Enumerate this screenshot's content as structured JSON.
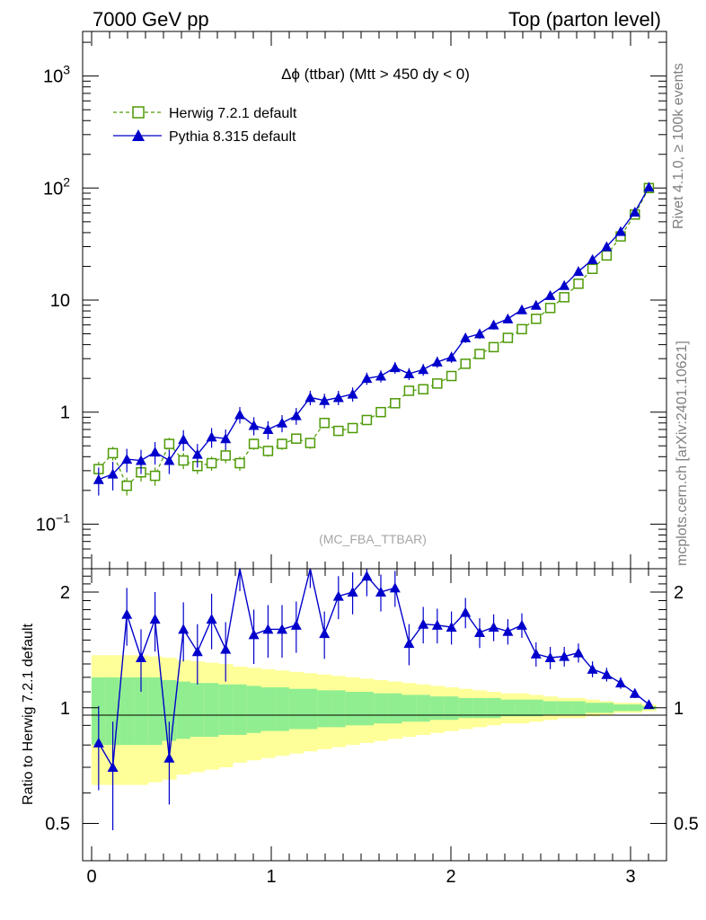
{
  "header": {
    "left": "7000 GeV pp",
    "right": "Top (parton level)"
  },
  "side_labels": {
    "rivet": "Rivet 4.1.0, ≥ 100k events",
    "mcplots": "mcplots.cern.ch [arXiv:2401.10621]"
  },
  "plot": {
    "title": "Δϕ (ttbar) (Mtt > 450 dy < 0)",
    "analysis": "(MC_FBA_TTBAR)",
    "ratio_ylabel": "Ratio to Herwig 7.2.1 default",
    "main_yticks": [
      {
        "base": "10",
        "exp": "3",
        "value": 1000
      },
      {
        "base": "10",
        "exp": "2",
        "value": 100
      },
      {
        "base": "10",
        "exp": "",
        "value": 10
      },
      {
        "base": "1",
        "exp": "",
        "value": 1
      },
      {
        "base": "10",
        "exp": "−1",
        "value": 0.1
      }
    ],
    "ratio_yticks": [
      {
        "label": "2",
        "value": 2
      },
      {
        "label": "1",
        "value": 1
      },
      {
        "label": "0.5",
        "value": 0.5
      }
    ],
    "xticks": [
      {
        "label": "0",
        "value": 0
      },
      {
        "label": "1",
        "value": 1
      },
      {
        "label": "2",
        "value": 2
      },
      {
        "label": "3",
        "value": 3
      }
    ]
  },
  "chart_data": {
    "type": "line",
    "title": "Δϕ (ttbar) (Mtt > 450 dy < 0)",
    "xlabel": "",
    "ylabel": "",
    "xlim": [
      -0.05,
      3.2
    ],
    "ylim": [
      0.04,
      2500
    ],
    "yscale": "log",
    "ratio_ylim": [
      0.4,
      2.3
    ],
    "legend_position": "top-left",
    "x": [
      0.039,
      0.118,
      0.196,
      0.275,
      0.353,
      0.432,
      0.511,
      0.589,
      0.668,
      0.746,
      0.825,
      0.903,
      0.982,
      1.06,
      1.139,
      1.217,
      1.296,
      1.374,
      1.453,
      1.532,
      1.61,
      1.689,
      1.767,
      1.846,
      1.924,
      2.003,
      2.081,
      2.16,
      2.238,
      2.317,
      2.395,
      2.474,
      2.553,
      2.631,
      2.71,
      2.788,
      2.867,
      2.945,
      3.024,
      3.102
    ],
    "series": [
      {
        "name": "Herwig 7.2.1 default",
        "color": "#4e9a06",
        "marker": "open-square",
        "values": [
          0.31,
          0.43,
          0.22,
          0.29,
          0.27,
          0.52,
          0.37,
          0.33,
          0.35,
          0.41,
          0.35,
          0.52,
          0.45,
          0.52,
          0.58,
          0.53,
          0.8,
          0.68,
          0.72,
          0.85,
          1.0,
          1.2,
          1.55,
          1.6,
          1.8,
          2.1,
          2.7,
          3.3,
          3.8,
          4.6,
          5.5,
          6.8,
          8.5,
          10.6,
          14,
          19,
          25,
          37,
          58,
          100
        ],
        "errors": [
          0.05,
          0.06,
          0.04,
          0.05,
          0.05,
          0.07,
          0.06,
          0.05,
          0.05,
          0.06,
          0.05,
          0.06,
          0.05,
          0.06,
          0.06,
          0.06,
          0.08,
          0.07,
          0.07,
          0.08,
          0.08,
          0.09,
          0.1,
          0.1,
          0.11,
          0.12,
          0.14,
          0.15,
          0.17,
          0.2,
          0.22,
          0.26,
          0.3,
          0.35,
          0.45,
          0.55,
          0.7,
          0.9,
          1.2,
          1.8
        ]
      },
      {
        "name": "Pythia 8.315 default",
        "color": "#0000cc",
        "marker": "filled-triangle",
        "values": [
          0.25,
          0.28,
          0.38,
          0.37,
          0.44,
          0.37,
          0.57,
          0.42,
          0.6,
          0.58,
          0.95,
          0.76,
          0.7,
          0.8,
          0.93,
          1.35,
          1.27,
          1.35,
          1.45,
          2.0,
          2.1,
          2.5,
          2.2,
          2.4,
          2.8,
          3.1,
          4.6,
          5.0,
          6.0,
          6.8,
          8.2,
          9.0,
          11,
          13.5,
          18,
          23,
          30,
          41,
          61,
          102
        ],
        "errors": [
          0.07,
          0.08,
          0.09,
          0.09,
          0.1,
          0.09,
          0.12,
          0.1,
          0.12,
          0.12,
          0.16,
          0.14,
          0.13,
          0.14,
          0.16,
          0.2,
          0.19,
          0.2,
          0.21,
          0.25,
          0.26,
          0.3,
          0.27,
          0.29,
          0.32,
          0.35,
          0.45,
          0.5,
          0.55,
          0.6,
          0.7,
          0.75,
          0.9,
          1.0,
          1.3,
          1.6,
          2.0,
          2.6,
          3.5,
          5.0
        ]
      }
    ],
    "ratio": {
      "ylabel": "Ratio to Herwig 7.2.1 default",
      "reference": 1,
      "values": [
        0.81,
        0.7,
        1.75,
        1.35,
        1.7,
        0.74,
        1.6,
        1.4,
        1.7,
        1.42,
        2.36,
        1.55,
        1.6,
        1.6,
        1.64,
        2.4,
        1.56,
        1.95,
        2.0,
        2.2,
        2.0,
        2.05,
        1.47,
        1.65,
        1.64,
        1.62,
        1.77,
        1.57,
        1.62,
        1.58,
        1.64,
        1.38,
        1.35,
        1.36,
        1.39,
        1.26,
        1.22,
        1.16,
        1.09,
        1.02
      ],
      "errors": [
        0.2,
        0.22,
        0.3,
        0.25,
        0.3,
        0.18,
        0.28,
        0.25,
        0.28,
        0.25,
        0.35,
        0.25,
        0.25,
        0.25,
        0.25,
        0.35,
        0.22,
        0.25,
        0.25,
        0.25,
        0.22,
        0.22,
        0.18,
        0.18,
        0.17,
        0.16,
        0.16,
        0.14,
        0.13,
        0.12,
        0.12,
        0.1,
        0.09,
        0.08,
        0.08,
        0.06,
        0.05,
        0.04,
        0.03,
        0.02
      ],
      "band_inner": [
        0.2,
        0.2,
        0.2,
        0.2,
        0.2,
        0.18,
        0.17,
        0.16,
        0.16,
        0.15,
        0.15,
        0.14,
        0.13,
        0.13,
        0.12,
        0.12,
        0.11,
        0.11,
        0.1,
        0.1,
        0.09,
        0.09,
        0.08,
        0.08,
        0.07,
        0.07,
        0.06,
        0.06,
        0.06,
        0.05,
        0.05,
        0.05,
        0.04,
        0.04,
        0.04,
        0.03,
        0.03,
        0.02,
        0.02,
        0.01
      ],
      "band_outer": [
        0.37,
        0.37,
        0.37,
        0.37,
        0.36,
        0.35,
        0.33,
        0.32,
        0.31,
        0.3,
        0.28,
        0.27,
        0.26,
        0.25,
        0.24,
        0.23,
        0.22,
        0.21,
        0.2,
        0.19,
        0.18,
        0.17,
        0.16,
        0.15,
        0.14,
        0.13,
        0.12,
        0.11,
        0.1,
        0.09,
        0.09,
        0.08,
        0.07,
        0.06,
        0.06,
        0.05,
        0.04,
        0.03,
        0.03,
        0.02
      ],
      "inner_band_color": "#90ee90",
      "outer_band_color": "#ffff99"
    }
  }
}
